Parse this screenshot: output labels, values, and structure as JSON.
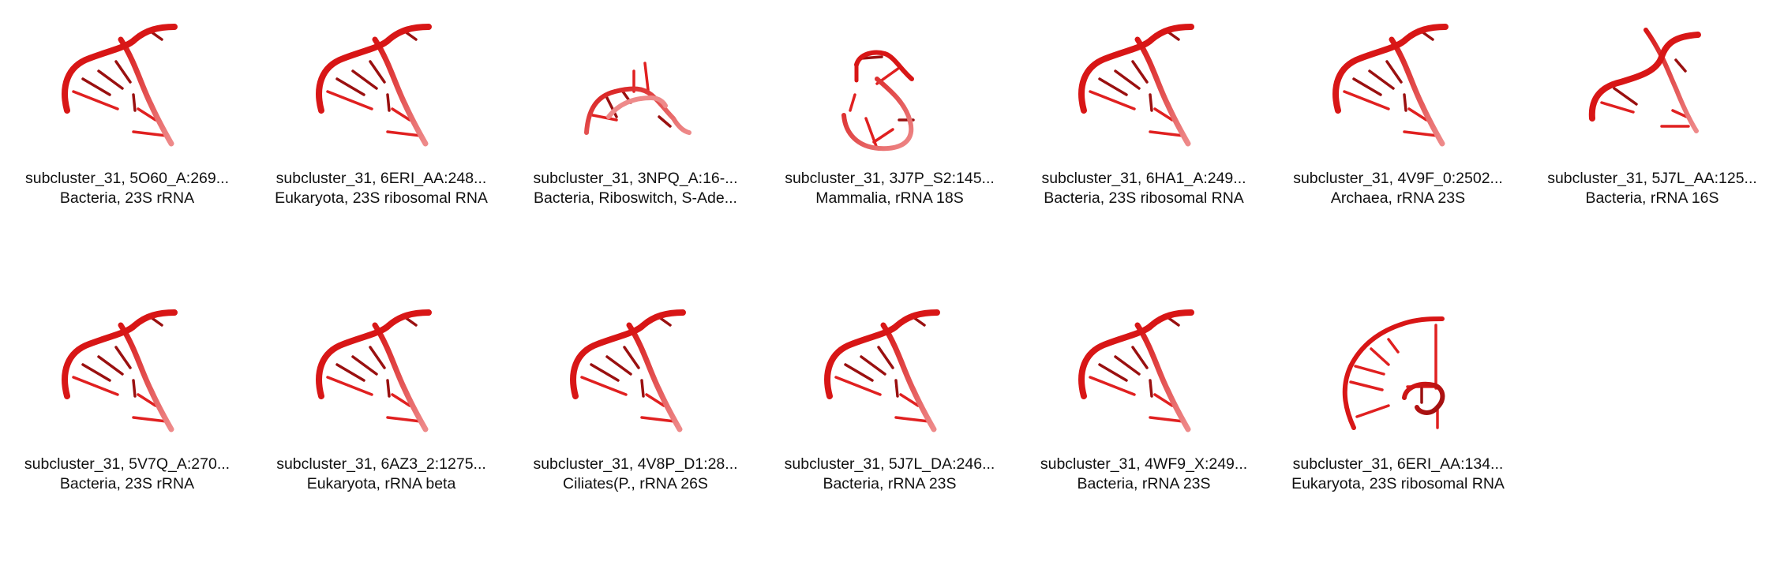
{
  "colors": {
    "backbone": "#d81616",
    "backbone_light": "#ee8a8a",
    "base": "#e02020",
    "base_dark": "#9a1010",
    "text": "#111111",
    "background": "#ffffff"
  },
  "tiles": [
    {
      "title": "subcluster_31, 5O60_A:269...",
      "subtitle": "Bacteria, 23S rRNA",
      "shape": "helix-a"
    },
    {
      "title": "subcluster_31, 6ERI_AA:248...",
      "subtitle": "Eukaryota, 23S ribosomal RNA",
      "shape": "helix-a"
    },
    {
      "title": "subcluster_31, 3NPQ_A:16-...",
      "subtitle": "Bacteria, Riboswitch, S-Ade...",
      "shape": "compact"
    },
    {
      "title": "subcluster_31, 3J7P_S2:145...",
      "subtitle": "Mammalia, rRNA 18S",
      "shape": "loop"
    },
    {
      "title": "subcluster_31, 6HA1_A:249...",
      "subtitle": "Bacteria, 23S ribosomal RNA",
      "shape": "helix-a"
    },
    {
      "title": "subcluster_31, 4V9F_0:2502...",
      "subtitle": "Archaea, rRNA 23S",
      "shape": "helix-a"
    },
    {
      "title": "subcluster_31, 5J7L_AA:125...",
      "subtitle": "Bacteria, rRNA 16S",
      "shape": "helix-b"
    },
    {
      "title": "subcluster_31, 5V7Q_A:270...",
      "subtitle": "Bacteria, 23S rRNA",
      "shape": "helix-a"
    },
    {
      "title": "subcluster_31, 6AZ3_2:1275...",
      "subtitle": "Eukaryota, rRNA beta",
      "shape": "helix-a"
    },
    {
      "title": "subcluster_31, 4V8P_D1:28...",
      "subtitle": "Ciliates(P., rRNA 26S",
      "shape": "helix-a"
    },
    {
      "title": "subcluster_31, 5J7L_DA:246...",
      "subtitle": "Bacteria, rRNA 23S",
      "shape": "helix-a"
    },
    {
      "title": "subcluster_31, 4WF9_X:249...",
      "subtitle": "Bacteria, rRNA 23S",
      "shape": "helix-a"
    },
    {
      "title": "subcluster_31, 6ERI_AA:134...",
      "subtitle": "Eukaryota, 23S ribosomal RNA",
      "shape": "arc"
    }
  ]
}
